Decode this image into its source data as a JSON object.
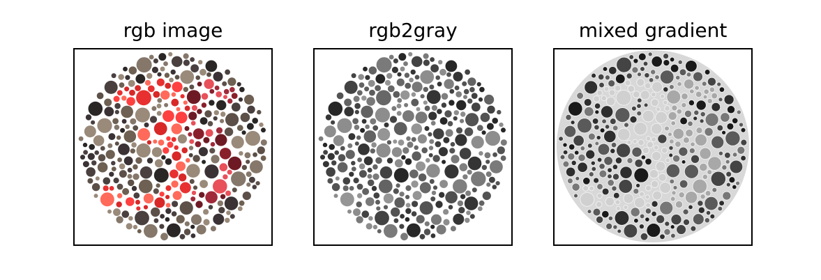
{
  "figure": {
    "panels": [
      {
        "title": "rgb image",
        "mode": "color",
        "digits": "35"
      },
      {
        "title": "rgb2gray",
        "mode": "gray",
        "digits": "35"
      },
      {
        "title": "mixed gradient",
        "mode": "gradient",
        "digits": "35"
      }
    ]
  },
  "colors": {
    "frame": "#000000",
    "dots_color": [
      "#2a2626",
      "#4a4040",
      "#6e6052",
      "#85776a",
      "#9a8a7a",
      "#3a3234",
      "#5c5048"
    ],
    "digit3_color": [
      "#ff4040",
      "#e83030",
      "#ff6a5a",
      "#d82828"
    ],
    "digit5_color": [
      "#8a1f2c",
      "#a02a3a",
      "#e8505a",
      "#6e1a24"
    ]
  }
}
